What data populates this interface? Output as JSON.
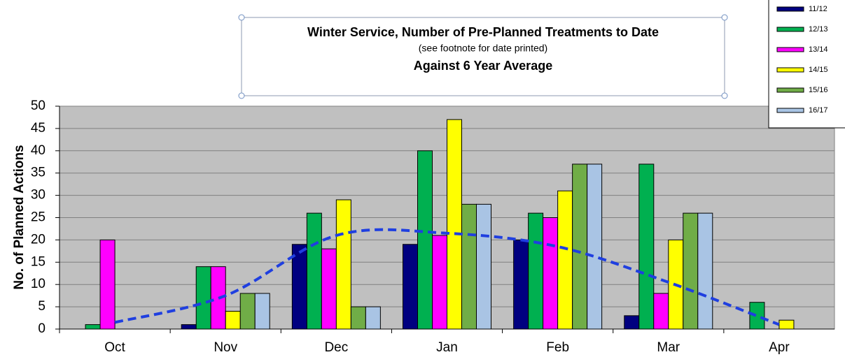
{
  "chart_data": {
    "type": "bar",
    "title": "Winter Service, Number of Pre-Planned Treatments to Date",
    "subtitle": "(see footnote for date printed)",
    "subtitle2": "Against 6 Year Average",
    "y_label": "No. of Planned Actions",
    "categories": [
      "Oct",
      "Nov",
      "Dec",
      "Jan",
      "Feb",
      "Mar",
      "Apr"
    ],
    "series": [
      {
        "name": "11/12",
        "color": "#000080",
        "values": [
          0,
          1,
          19,
          19,
          20,
          3,
          0
        ]
      },
      {
        "name": "12/13",
        "color": "#00b050",
        "values": [
          1,
          14,
          26,
          40,
          26,
          37,
          6
        ]
      },
      {
        "name": "13/14",
        "color": "#ff00ff",
        "values": [
          20,
          14,
          18,
          21,
          25,
          8,
          0
        ]
      },
      {
        "name": "14/15",
        "color": "#ffff00",
        "values": [
          0,
          4,
          29,
          47,
          31,
          20,
          2
        ]
      },
      {
        "name": "15/16",
        "color": "#70ad47",
        "values": [
          0,
          8,
          5,
          28,
          37,
          26,
          0
        ]
      },
      {
        "name": "16/17",
        "color": "#a9c4e4",
        "values": [
          0,
          8,
          5,
          28,
          37,
          26,
          0
        ]
      }
    ],
    "average": {
      "color": "#1f3fe0",
      "values": [
        1.5,
        7.5,
        21,
        21.5,
        18.5,
        10.5,
        1
      ]
    },
    "ylim": [
      0,
      50
    ],
    "yticks": [
      0,
      5,
      10,
      15,
      20,
      25,
      30,
      35,
      40,
      45,
      50
    ],
    "grid": true
  }
}
